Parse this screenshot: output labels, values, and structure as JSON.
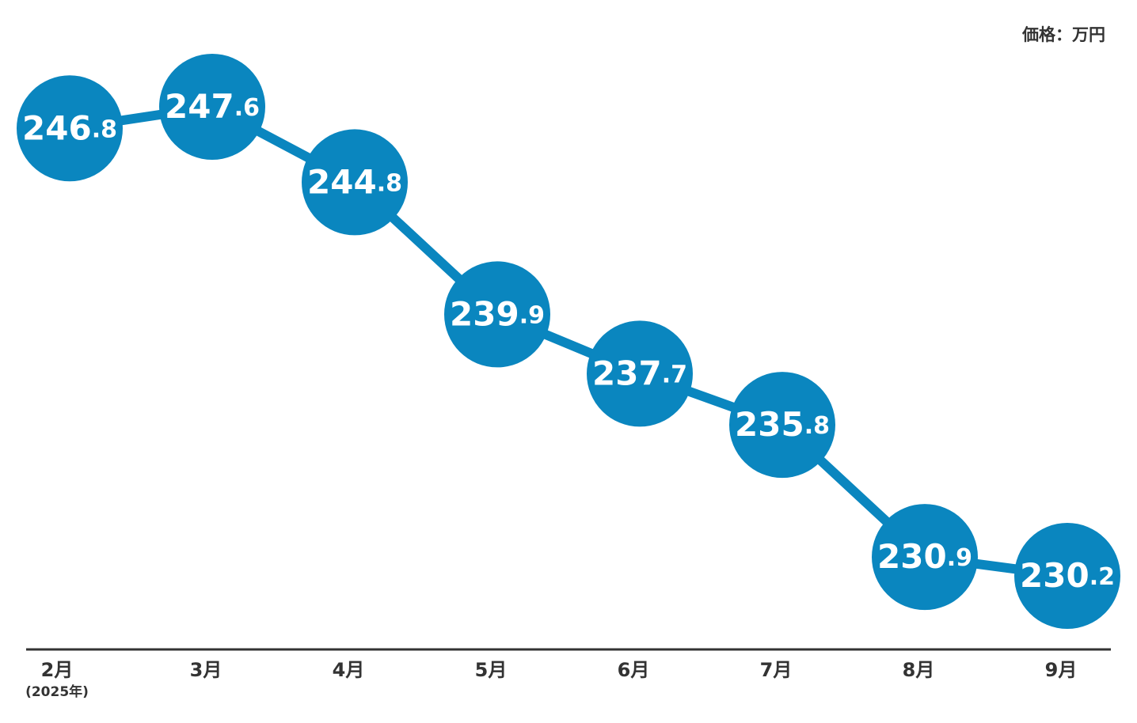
{
  "chart_data": {
    "type": "line",
    "unit_label": "価格：万円",
    "categories": [
      "2月",
      "3月",
      "4月",
      "5月",
      "6月",
      "7月",
      "8月",
      "9月"
    ],
    "category_note": "(2025年)",
    "values": [
      246.8,
      247.6,
      244.8,
      239.9,
      237.7,
      235.8,
      230.9,
      230.2
    ],
    "color": "#0a86bf"
  }
}
